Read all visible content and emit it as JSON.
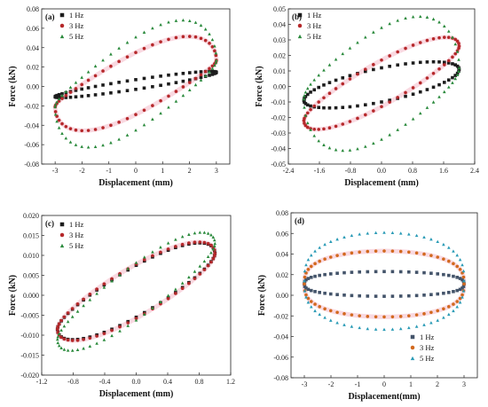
{
  "colors": {
    "1 Hz": "#1c1c1c",
    "3 Hz": "#b5282a",
    "5 Hz": "#2a8a3c",
    "1 Hz d": "#44546a",
    "3 Hz d": "#d2691e",
    "5 Hz d": "#2a9bb6",
    "band": "#f6c9d4"
  },
  "chart_data": [
    {
      "type": "scatter",
      "panel_label": "(a)",
      "xlabel": "Displacement (mm)",
      "ylabel": "Force (kN)",
      "xlim": [
        -3.5,
        3.5
      ],
      "ylim": [
        -0.08,
        0.08
      ],
      "xticks": [
        -3,
        -2,
        -1,
        0,
        1,
        2,
        3
      ],
      "xtick_labels": [
        "-3",
        "-2",
        "-1",
        "0",
        "1",
        "2",
        "3"
      ],
      "yticks": [
        -0.08,
        -0.06,
        -0.04,
        -0.02,
        0.0,
        0.02,
        0.04,
        0.06,
        0.08
      ],
      "ytick_labels": [
        "-0.08",
        "-0.06",
        "-0.04",
        "-0.02",
        "0.00",
        "0.02",
        "0.04",
        "0.06",
        "0.08"
      ],
      "legend": {
        "position": "top-left",
        "entries": [
          "1 Hz",
          "3 Hz",
          "5 Hz"
        ]
      },
      "series": [
        {
          "name": "1 Hz",
          "marker": "square",
          "n": 60,
          "amp": 3.0,
          "mean": 0.002,
          "slope": 0.0042,
          "hyst": 0.005,
          "tilt": 0.0,
          "sharp": 0.0,
          "rot": 0.0
        },
        {
          "name": "3 Hz",
          "marker": "circle",
          "n": 60,
          "amp": 3.0,
          "mean": 0.003,
          "slope": 0.008,
          "hyst": 0.032,
          "tilt": 0.0,
          "sharp": 0.3,
          "rot": 0.55
        },
        {
          "name": "5 Hz",
          "marker": "triangle",
          "n": 60,
          "amp": 3.0,
          "mean": 0.003,
          "slope": 0.008,
          "hyst": 0.048,
          "tilt": 0.0,
          "sharp": 0.3,
          "rot": 0.55
        }
      ]
    },
    {
      "type": "scatter",
      "panel_label": "(b)",
      "xlabel": "Displacement (mm)",
      "ylabel": "Force (kN)",
      "xlim": [
        -2.4,
        2.4
      ],
      "ylim": [
        -0.05,
        0.05
      ],
      "xticks": [
        -2.4,
        -1.6,
        -0.8,
        0.0,
        0.8,
        1.6,
        2.4
      ],
      "xtick_labels": [
        "-2.4",
        "-1.6",
        "-0.8",
        "0.0",
        "0.8",
        "1.6",
        "2.4"
      ],
      "yticks": [
        -0.05,
        -0.04,
        -0.03,
        -0.02,
        -0.01,
        0.0,
        0.01,
        0.02,
        0.03,
        0.04,
        0.05
      ],
      "ytick_labels": [
        "-0.05",
        "-0.04",
        "-0.03",
        "-0.02",
        "-0.01",
        "0.00",
        "0.01",
        "0.02",
        "0.03",
        "0.04",
        "0.05"
      ],
      "legend": {
        "position": "top-left",
        "entries": [
          "1 Hz",
          "3 Hz",
          "5 Hz"
        ]
      },
      "series": [
        {
          "name": "1 Hz",
          "marker": "square",
          "n": 60,
          "amp": 2.0,
          "mean": 0.001,
          "slope": 0.005,
          "hyst": 0.011,
          "tilt": 0.0,
          "sharp": 0.0,
          "rot": 0.0
        },
        {
          "name": "3 Hz",
          "marker": "circle",
          "n": 60,
          "amp": 2.0,
          "mean": 0.002,
          "slope": 0.012,
          "hyst": 0.015,
          "tilt": 0.0,
          "sharp": 0.1,
          "rot": 0.2
        },
        {
          "name": "5 Hz",
          "marker": "triangle",
          "n": 60,
          "amp": 2.0,
          "mean": 0.002,
          "slope": 0.005,
          "hyst": 0.036,
          "tilt": 0.0,
          "sharp": 0.3,
          "rot": 0.45
        }
      ]
    },
    {
      "type": "scatter",
      "panel_label": "(c)",
      "xlabel": "Displacement (mm)",
      "ylabel": "Force (kN)",
      "xlim": [
        -1.2,
        1.2
      ],
      "ylim": [
        -0.02,
        0.02
      ],
      "xticks": [
        -1.2,
        -0.8,
        -0.4,
        0.0,
        0.4,
        0.8,
        1.2
      ],
      "xtick_labels": [
        "-1.2",
        "-0.8",
        "-0.4",
        "0.0",
        "0.4",
        "0.8",
        "1.2"
      ],
      "yticks": [
        -0.02,
        -0.015,
        -0.01,
        -0.005,
        0.0,
        0.005,
        0.01,
        0.015,
        0.02
      ],
      "ytick_labels": [
        "-0.020",
        "-0.015",
        "-0.010",
        "-0.005",
        "0.000",
        "0.005",
        "0.010",
        "0.015",
        "0.020"
      ],
      "legend": {
        "position": "top-left",
        "entries": [
          "1 Hz",
          "3 Hz",
          "5 Hz"
        ]
      },
      "series": [
        {
          "name": "1 Hz",
          "marker": "square",
          "n": 60,
          "amp": 1.0,
          "mean": 0.001,
          "slope": 0.0095,
          "hyst": 0.0065,
          "tilt": 0.0,
          "sharp": 0.2,
          "rot": 0.2
        },
        {
          "name": "3 Hz",
          "marker": "circle",
          "n": 60,
          "amp": 1.0,
          "mean": 0.001,
          "slope": 0.0095,
          "hyst": 0.0068,
          "tilt": 0.0,
          "sharp": 0.2,
          "rot": 0.2
        },
        {
          "name": "5 Hz",
          "marker": "triangle",
          "n": 60,
          "amp": 1.0,
          "mean": 0.001,
          "slope": 0.012,
          "hyst": 0.0072,
          "tilt": 0.0,
          "sharp": 0.25,
          "rot": 0.25
        }
      ]
    },
    {
      "type": "scatter",
      "panel_label": "(d)",
      "xlabel": "Displacement(mm)",
      "ylabel": "Force (kN)",
      "xlim": [
        -3.5,
        3.5
      ],
      "ylim": [
        -0.08,
        0.08
      ],
      "xticks": [
        -3,
        -2,
        -1,
        0,
        1,
        2,
        3
      ],
      "xtick_labels": [
        "-3",
        "-2",
        "-1",
        "0",
        "1",
        "2",
        "3"
      ],
      "yticks": [
        -0.08,
        -0.06,
        -0.04,
        -0.02,
        0.0,
        0.02,
        0.04,
        0.06,
        0.08
      ],
      "ytick_labels": [
        "-0.08",
        "-0.06",
        "-0.04",
        "-0.02",
        "0.00",
        "0.02",
        "0.04",
        "0.06",
        "0.08"
      ],
      "legend": {
        "position": "bottom-right",
        "entries": [
          "1 Hz",
          "3 Hz",
          "5 Hz"
        ]
      },
      "series": [
        {
          "name": "1 Hz",
          "marker": "square",
          "color_key": "1 Hz d",
          "n": 60,
          "amp": 3.0,
          "mean": 0.011,
          "slope": 0.0,
          "hyst": 0.012,
          "tilt": 0.0,
          "sharp": -0.3,
          "rot": 0.0
        },
        {
          "name": "3 Hz",
          "marker": "circle",
          "color_key": "3 Hz d",
          "n": 60,
          "amp": 3.0,
          "mean": 0.011,
          "slope": 0.0,
          "hyst": 0.032,
          "tilt": 0.0,
          "sharp": -0.3,
          "rot": 0.0
        },
        {
          "name": "5 Hz",
          "marker": "triangle",
          "color_key": "5 Hz d",
          "n": 60,
          "amp": 3.0,
          "mean": 0.014,
          "slope": 0.0,
          "hyst": 0.047,
          "tilt": 0.0,
          "sharp": -0.3,
          "rot": 0.0
        }
      ]
    }
  ]
}
